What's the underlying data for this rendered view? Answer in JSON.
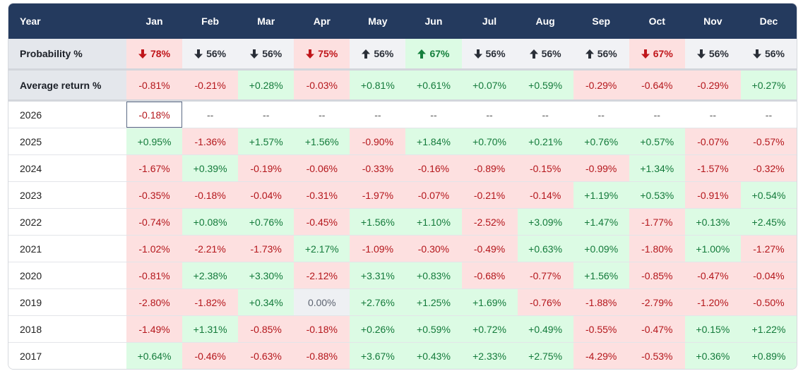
{
  "table": {
    "header": [
      "Year",
      "Jan",
      "Feb",
      "Mar",
      "Apr",
      "May",
      "Jun",
      "Jul",
      "Aug",
      "Sep",
      "Oct",
      "Nov",
      "Dec"
    ],
    "probability": {
      "label": "Probability %",
      "cells": [
        {
          "arrow": "down",
          "text": "78%",
          "highlight": "red"
        },
        {
          "arrow": "down",
          "text": "56%",
          "highlight": "grey"
        },
        {
          "arrow": "down",
          "text": "56%",
          "highlight": "grey"
        },
        {
          "arrow": "down",
          "text": "75%",
          "highlight": "red"
        },
        {
          "arrow": "up",
          "text": "56%",
          "highlight": "grey"
        },
        {
          "arrow": "up",
          "text": "67%",
          "highlight": "green"
        },
        {
          "arrow": "down",
          "text": "56%",
          "highlight": "grey"
        },
        {
          "arrow": "up",
          "text": "56%",
          "highlight": "grey"
        },
        {
          "arrow": "up",
          "text": "56%",
          "highlight": "grey"
        },
        {
          "arrow": "down",
          "text": "67%",
          "highlight": "red"
        },
        {
          "arrow": "down",
          "text": "56%",
          "highlight": "grey"
        },
        {
          "arrow": "down",
          "text": "56%",
          "highlight": "grey"
        }
      ]
    },
    "average": {
      "label": "Average return %",
      "cells": [
        "-0.81%",
        "-0.21%",
        "+0.28%",
        "-0.03%",
        "+0.81%",
        "+0.61%",
        "+0.07%",
        "+0.59%",
        "-0.29%",
        "-0.64%",
        "-0.29%",
        "+0.27%"
      ]
    },
    "rows": [
      {
        "year": "2026",
        "cells": [
          "-0.18%",
          "--",
          "--",
          "--",
          "--",
          "--",
          "--",
          "--",
          "--",
          "--",
          "--",
          "--"
        ]
      },
      {
        "year": "2025",
        "cells": [
          "+0.95%",
          "-1.36%",
          "+1.57%",
          "+1.56%",
          "-0.90%",
          "+1.84%",
          "+0.70%",
          "+0.21%",
          "+0.76%",
          "+0.57%",
          "-0.07%",
          "-0.57%"
        ]
      },
      {
        "year": "2024",
        "cells": [
          "-1.67%",
          "+0.39%",
          "-0.19%",
          "-0.06%",
          "-0.33%",
          "-0.16%",
          "-0.89%",
          "-0.15%",
          "-0.99%",
          "+1.34%",
          "-1.57%",
          "-0.32%"
        ]
      },
      {
        "year": "2023",
        "cells": [
          "-0.35%",
          "-0.18%",
          "-0.04%",
          "-0.31%",
          "-1.97%",
          "-0.07%",
          "-0.21%",
          "-0.14%",
          "+1.19%",
          "+0.53%",
          "-0.91%",
          "+0.54%"
        ]
      },
      {
        "year": "2022",
        "cells": [
          "-0.74%",
          "+0.08%",
          "+0.76%",
          "-0.45%",
          "+1.56%",
          "+1.10%",
          "-2.52%",
          "+3.09%",
          "+1.47%",
          "-1.77%",
          "+0.13%",
          "+2.45%"
        ]
      },
      {
        "year": "2021",
        "cells": [
          "-1.02%",
          "-2.21%",
          "-1.73%",
          "+2.17%",
          "-1.09%",
          "-0.30%",
          "-0.49%",
          "+0.63%",
          "+0.09%",
          "-1.80%",
          "+1.00%",
          "-1.27%"
        ]
      },
      {
        "year": "2020",
        "cells": [
          "-0.81%",
          "+2.38%",
          "+3.30%",
          "-2.12%",
          "+3.31%",
          "+0.83%",
          "-0.68%",
          "-0.77%",
          "+1.56%",
          "-0.85%",
          "-0.47%",
          "-0.04%"
        ]
      },
      {
        "year": "2019",
        "cells": [
          "-2.80%",
          "-1.82%",
          "+0.34%",
          "0.00%",
          "+2.76%",
          "+1.25%",
          "+1.69%",
          "-0.76%",
          "-1.88%",
          "-2.79%",
          "-1.20%",
          "-0.50%"
        ]
      },
      {
        "year": "2018",
        "cells": [
          "-1.49%",
          "+1.31%",
          "-0.85%",
          "-0.18%",
          "+0.26%",
          "+0.59%",
          "+0.72%",
          "+0.49%",
          "-0.55%",
          "-0.47%",
          "+0.15%",
          "+1.22%"
        ]
      },
      {
        "year": "2017",
        "cells": [
          "+0.64%",
          "-0.46%",
          "-0.63%",
          "-0.88%",
          "+3.67%",
          "+0.43%",
          "+2.33%",
          "+2.75%",
          "-4.29%",
          "-0.53%",
          "+0.36%",
          "+0.89%"
        ]
      }
    ],
    "selected": {
      "row": 0,
      "col": 0
    }
  }
}
